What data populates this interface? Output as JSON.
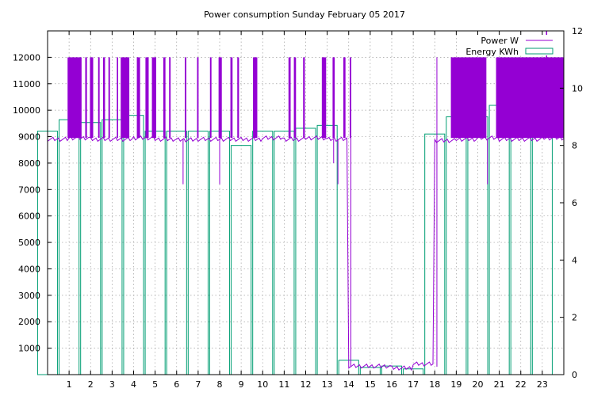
{
  "chart_data": {
    "type": "bar",
    "title": "Power consumption Sunday February 05 2017",
    "xlabel": "",
    "ylabel": "",
    "y2label": "",
    "xlim": [
      0,
      24
    ],
    "ylim": [
      0,
      13000
    ],
    "y2lim": [
      0,
      12
    ],
    "x_ticks": [
      1,
      2,
      3,
      4,
      5,
      6,
      7,
      8,
      9,
      10,
      11,
      12,
      13,
      14,
      15,
      16,
      17,
      18,
      19,
      20,
      21,
      22,
      23
    ],
    "y_ticks": [
      1000,
      2000,
      3000,
      4000,
      5000,
      6000,
      7000,
      8000,
      9000,
      10000,
      11000,
      12000
    ],
    "y2_ticks": [
      0,
      2,
      4,
      6,
      8,
      10,
      12
    ],
    "grid": true,
    "legend_position": "top-right",
    "colors": {
      "power": "#9400d3",
      "energy": "#009e73"
    },
    "series": [
      {
        "name": "Power W",
        "axis": "y",
        "style": "line",
        "baseline_watts": [
          8900,
          8950,
          8900,
          8900,
          8950,
          8900,
          8880,
          8900,
          8900,
          8900,
          8950,
          8900,
          8950,
          8900,
          320,
          320,
          250,
          400,
          8850,
          8900,
          8950,
          8900,
          8900,
          8950
        ],
        "spike_intervals": [
          [
            0.93,
            1.58
          ],
          [
            1.75,
            1.83
          ],
          [
            1.97,
            2.12
          ],
          [
            2.35,
            2.42
          ],
          [
            2.58,
            2.67
          ],
          [
            2.83,
            2.9
          ],
          [
            3.22,
            3.28
          ],
          [
            3.4,
            3.8
          ],
          [
            4.15,
            4.3
          ],
          [
            4.55,
            4.7
          ],
          [
            4.85,
            5.05
          ],
          [
            5.38,
            5.48
          ],
          [
            5.65,
            5.72
          ],
          [
            6.38,
            6.45
          ],
          [
            6.95,
            7.02
          ],
          [
            7.55,
            7.62
          ],
          [
            7.95,
            8.1
          ],
          [
            8.5,
            8.6
          ],
          [
            8.82,
            8.9
          ],
          [
            9.55,
            9.75
          ],
          [
            11.2,
            11.3
          ],
          [
            11.45,
            11.55
          ],
          [
            11.88,
            11.96
          ],
          [
            12.75,
            12.95
          ],
          [
            13.25,
            13.35
          ],
          [
            13.75,
            13.85
          ],
          [
            14.05,
            14.12
          ],
          [
            18.75,
            20.4
          ],
          [
            20.85,
            24
          ]
        ],
        "dips": [
          [
            6.3,
            7200
          ],
          [
            8.0,
            7200
          ],
          [
            13.5,
            7200
          ],
          [
            20.45,
            7200
          ],
          [
            13.3,
            8000
          ]
        ]
      },
      {
        "name": "Energy KWh",
        "axis": "y2",
        "style": "boxes",
        "x": [
          0,
          1,
          2,
          3,
          4,
          5,
          6,
          7,
          8,
          9,
          10,
          11,
          12,
          13,
          14,
          15,
          16,
          17,
          18,
          19,
          20,
          21,
          22,
          23
        ],
        "values": [
          8.5,
          8.9,
          8.8,
          8.9,
          9.05,
          8.5,
          8.5,
          8.5,
          8.5,
          8.0,
          8.5,
          8.5,
          8.6,
          8.7,
          0.5,
          0.25,
          0.3,
          0.2,
          8.4,
          9.0,
          9.0,
          9.4,
          9.6,
          10.4
        ]
      }
    ]
  }
}
